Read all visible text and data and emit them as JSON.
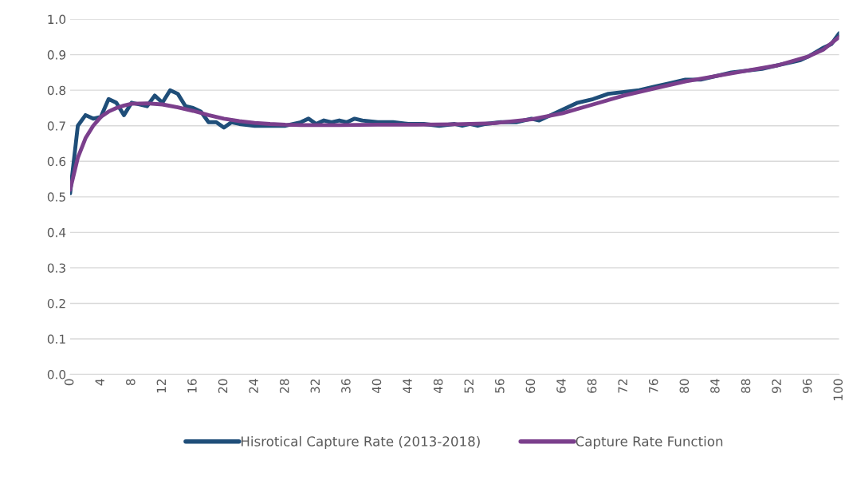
{
  "chart_data": {
    "type": "line",
    "series": [
      {
        "name": "Hisrotical Capture Rate (2013-2018)",
        "color": "#1f4e79",
        "x": [
          0,
          1,
          2,
          3,
          4,
          5,
          6,
          7,
          8,
          9,
          10,
          11,
          12,
          13,
          14,
          15,
          16,
          17,
          18,
          19,
          20,
          21,
          22,
          24,
          26,
          28,
          30,
          31,
          32,
          33,
          34,
          35,
          36,
          37,
          38,
          40,
          42,
          44,
          46,
          48,
          50,
          51,
          52,
          53,
          54,
          56,
          58,
          60,
          61,
          62,
          64,
          66,
          68,
          70,
          72,
          74,
          76,
          78,
          80,
          82,
          84,
          86,
          88,
          90,
          92,
          94,
          95,
          96,
          98,
          99,
          100
        ],
        "values": [
          0.51,
          0.7,
          0.73,
          0.72,
          0.725,
          0.775,
          0.765,
          0.73,
          0.765,
          0.76,
          0.755,
          0.785,
          0.765,
          0.8,
          0.79,
          0.755,
          0.75,
          0.74,
          0.71,
          0.71,
          0.695,
          0.71,
          0.705,
          0.7,
          0.7,
          0.7,
          0.71,
          0.72,
          0.705,
          0.715,
          0.71,
          0.715,
          0.71,
          0.72,
          0.715,
          0.71,
          0.71,
          0.705,
          0.705,
          0.7,
          0.705,
          0.7,
          0.705,
          0.7,
          0.705,
          0.71,
          0.71,
          0.72,
          0.715,
          0.725,
          0.745,
          0.765,
          0.775,
          0.79,
          0.795,
          0.8,
          0.81,
          0.82,
          0.83,
          0.83,
          0.84,
          0.85,
          0.855,
          0.86,
          0.87,
          0.88,
          0.885,
          0.895,
          0.92,
          0.93,
          0.96
        ]
      },
      {
        "name": "Capture Rate Function",
        "color": "#7b3f8c",
        "x": [
          0,
          1,
          2,
          3,
          4,
          5,
          6,
          7,
          8,
          10,
          12,
          14,
          16,
          18,
          20,
          22,
          24,
          26,
          28,
          30,
          35,
          40,
          45,
          50,
          55,
          60,
          64,
          68,
          72,
          76,
          80,
          84,
          88,
          92,
          96,
          98,
          100
        ],
        "values": [
          0.52,
          0.61,
          0.665,
          0.7,
          0.725,
          0.74,
          0.75,
          0.757,
          0.762,
          0.763,
          0.76,
          0.752,
          0.742,
          0.73,
          0.72,
          0.713,
          0.708,
          0.705,
          0.703,
          0.702,
          0.702,
          0.703,
          0.703,
          0.704,
          0.707,
          0.718,
          0.735,
          0.76,
          0.785,
          0.805,
          0.825,
          0.84,
          0.855,
          0.87,
          0.895,
          0.915,
          0.95
        ]
      }
    ],
    "xlim": [
      0,
      100
    ],
    "xticks": [
      0,
      4,
      8,
      12,
      16,
      20,
      24,
      28,
      32,
      36,
      40,
      44,
      48,
      52,
      56,
      60,
      64,
      68,
      72,
      76,
      80,
      84,
      88,
      92,
      96,
      100
    ],
    "ylim": [
      0,
      1.0
    ],
    "yticks": [
      {
        "value": 0,
        "label": "0.0"
      },
      {
        "value": 0.1,
        "label": "0.1"
      },
      {
        "value": 0.2,
        "label": "0.2"
      },
      {
        "value": 0.3,
        "label": "0.3"
      },
      {
        "value": 0.4,
        "label": "0.4"
      },
      {
        "value": 0.5,
        "label": "0.5"
      },
      {
        "value": 0.6,
        "label": "0.6"
      },
      {
        "value": 0.7,
        "label": "0.7"
      },
      {
        "value": 0.8,
        "label": "0.8"
      },
      {
        "value": 0.9,
        "label": "0.9"
      },
      {
        "value": 1.0,
        "label": "1.0"
      }
    ],
    "grid": "y",
    "legend": "bottom",
    "marker": "none",
    "line_style": "solid"
  }
}
